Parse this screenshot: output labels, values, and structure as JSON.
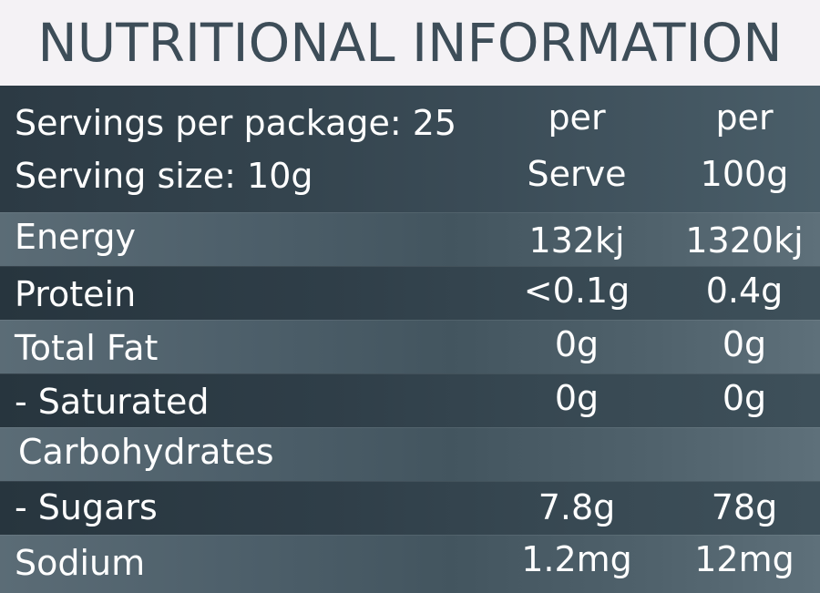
{
  "title": "NUTRITIONAL INFORMATION",
  "header": {
    "servings_per_package": "Servings per package: 25",
    "serving_size": "Serving size: 10g",
    "col1_line1": "per",
    "col1_line2": "Serve",
    "col2_line1": "per",
    "col2_line2": "100g"
  },
  "rows": [
    {
      "name": "Energy",
      "per_serve": "132kj",
      "per_100g": "1320kj"
    },
    {
      "name": "Protein",
      "per_serve": "<0.1g",
      "per_100g": "0.4g"
    },
    {
      "name": "Total Fat",
      "per_serve": "0g",
      "per_100g": "0g"
    },
    {
      "name": "- Saturated",
      "per_serve": "0g",
      "per_100g": "0g"
    },
    {
      "name": "Carbohydrates",
      "per_serve": "",
      "per_100g": ""
    },
    {
      "name": "- Sugars",
      "per_serve": "7.8g",
      "per_100g": "78g"
    },
    {
      "name": "Sodium",
      "per_serve": "1.2mg",
      "per_100g": "12mg"
    }
  ]
}
